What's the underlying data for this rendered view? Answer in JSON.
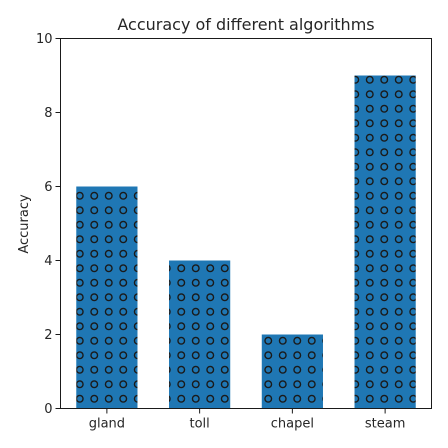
{
  "chart_data": {
    "type": "bar",
    "title": "Accuracy of different algorithms",
    "xlabel": "",
    "ylabel": "Accuracy",
    "categories": [
      "gland",
      "toll",
      "chapel",
      "steam"
    ],
    "values": [
      6,
      4,
      2,
      9
    ],
    "ylim": [
      0,
      10
    ],
    "yticks": [
      "0",
      "2",
      "4",
      "6",
      "8",
      "10"
    ],
    "bar_color": "#1f77b4",
    "bar_pattern": "circles",
    "grid": false,
    "legend": "none"
  }
}
